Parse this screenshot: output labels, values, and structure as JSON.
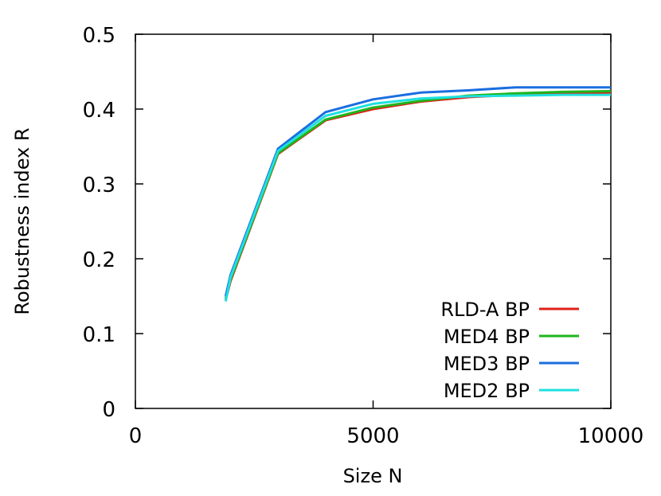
{
  "chart_data": {
    "type": "line",
    "title": "",
    "xlabel": "Size N",
    "ylabel": "Robustness index R",
    "xlim": [
      0,
      10000
    ],
    "ylim": [
      0,
      0.5
    ],
    "xticks": [
      "0",
      "5000",
      "10000"
    ],
    "yticks": [
      "0",
      "0.1",
      "0.2",
      "0.3",
      "0.4",
      "0.5"
    ],
    "grid": false,
    "legend_position": "bottom-right",
    "series": [
      {
        "name": "RLD-A BP",
        "color": "#e0201a",
        "x": [
          1900,
          2000,
          3000,
          4000,
          5000,
          6000,
          7000,
          8000,
          9000,
          10000
        ],
        "y": [
          0.145,
          0.17,
          0.34,
          0.385,
          0.4,
          0.41,
          0.416,
          0.419,
          0.421,
          0.422
        ]
      },
      {
        "name": "MED4 BP",
        "color": "#1db61d",
        "x": [
          1900,
          2000,
          3000,
          4000,
          5000,
          6000,
          7000,
          8000,
          9000,
          10000
        ],
        "y": [
          0.147,
          0.172,
          0.341,
          0.386,
          0.402,
          0.411,
          0.418,
          0.421,
          0.423,
          0.424
        ]
      },
      {
        "name": "MED3 BP",
        "color": "#1a6ee0",
        "x": [
          1900,
          2000,
          3000,
          4000,
          5000,
          6000,
          7000,
          8000,
          9000,
          10000
        ],
        "y": [
          0.15,
          0.178,
          0.347,
          0.396,
          0.413,
          0.422,
          0.425,
          0.429,
          0.429,
          0.429
        ]
      },
      {
        "name": "MED2 BP",
        "color": "#1ee0e0",
        "x": [
          1900,
          2000,
          3000,
          4000,
          5000,
          6000,
          7000,
          8000,
          9000,
          10000
        ],
        "y": [
          0.143,
          0.175,
          0.344,
          0.391,
          0.407,
          0.414,
          0.417,
          0.418,
          0.419,
          0.419
        ]
      }
    ]
  }
}
